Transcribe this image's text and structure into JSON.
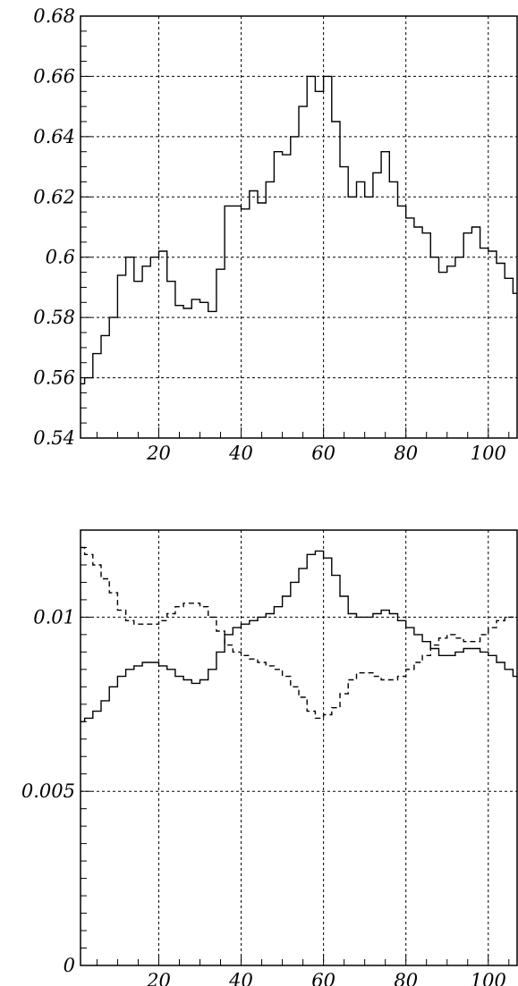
{
  "chart_data": [
    {
      "type": "line",
      "title": "",
      "xlabel": "",
      "ylabel": "",
      "xlim": [
        1,
        107
      ],
      "ylim": [
        0.54,
        0.68
      ],
      "grid": true,
      "x_ticks": [
        20,
        40,
        60,
        80,
        100
      ],
      "y_ticks": [
        0.54,
        0.56,
        0.58,
        0.6,
        0.62,
        0.64,
        0.66,
        0.68
      ],
      "x_tick_labels": [
        "20",
        "40",
        "60",
        "80",
        "100"
      ],
      "y_tick_labels": [
        "0.54",
        "0.56",
        "0.58",
        "0.6",
        "0.62",
        "0.64",
        "0.66",
        "0.68"
      ],
      "series": [
        {
          "style": "solid",
          "step": true,
          "x": [
            1,
            3,
            5,
            7,
            9,
            11,
            13,
            15,
            17,
            19,
            21,
            23,
            25,
            27,
            29,
            31,
            33,
            35,
            37,
            39,
            41,
            43,
            45,
            47,
            49,
            51,
            53,
            55,
            57,
            59,
            61,
            63,
            65,
            67,
            69,
            71,
            73,
            75,
            77,
            79,
            81,
            83,
            85,
            87,
            89,
            91,
            93,
            95,
            97,
            99,
            101,
            103,
            105,
            107
          ],
          "y": [
            0.558,
            0.56,
            0.568,
            0.574,
            0.58,
            0.594,
            0.6,
            0.592,
            0.597,
            0.6,
            0.602,
            0.592,
            0.584,
            0.583,
            0.586,
            0.585,
            0.582,
            0.596,
            0.617,
            0.617,
            0.616,
            0.622,
            0.618,
            0.625,
            0.635,
            0.634,
            0.64,
            0.65,
            0.66,
            0.655,
            0.66,
            0.645,
            0.63,
            0.62,
            0.625,
            0.62,
            0.628,
            0.635,
            0.625,
            0.617,
            0.613,
            0.61,
            0.608,
            0.6,
            0.595,
            0.597,
            0.6,
            0.608,
            0.61,
            0.603,
            0.602,
            0.598,
            0.593,
            0.588
          ]
        }
      ]
    },
    {
      "type": "line",
      "title": "",
      "xlabel": "",
      "ylabel": "",
      "xlim": [
        1,
        107
      ],
      "ylim": [
        0,
        0.0125
      ],
      "grid": true,
      "x_ticks": [
        20,
        40,
        60,
        80,
        100
      ],
      "y_ticks": [
        0,
        0.005,
        0.01
      ],
      "x_tick_labels": [
        "20",
        "40",
        "60",
        "80",
        "100"
      ],
      "y_tick_labels": [
        "0",
        "0.005",
        "0.01"
      ],
      "series": [
        {
          "style": "solid",
          "step": true,
          "x": [
            1,
            3,
            5,
            7,
            9,
            11,
            13,
            15,
            17,
            19,
            21,
            23,
            25,
            27,
            29,
            31,
            33,
            35,
            37,
            39,
            41,
            43,
            45,
            47,
            49,
            51,
            53,
            55,
            57,
            59,
            61,
            63,
            65,
            67,
            69,
            71,
            73,
            75,
            77,
            79,
            81,
            83,
            85,
            87,
            89,
            91,
            93,
            95,
            97,
            99,
            101,
            103,
            105,
            107
          ],
          "y": [
            0.007,
            0.0071,
            0.0073,
            0.0076,
            0.008,
            0.0083,
            0.0085,
            0.0086,
            0.0087,
            0.0087,
            0.0086,
            0.0085,
            0.0083,
            0.0082,
            0.0081,
            0.0082,
            0.0085,
            0.009,
            0.0095,
            0.0097,
            0.0098,
            0.0099,
            0.01,
            0.0101,
            0.0103,
            0.0106,
            0.011,
            0.0114,
            0.0118,
            0.0119,
            0.0117,
            0.0112,
            0.0106,
            0.0101,
            0.01,
            0.01,
            0.0101,
            0.0102,
            0.0101,
            0.0099,
            0.0097,
            0.0095,
            0.0093,
            0.0091,
            0.0089,
            0.0089,
            0.009,
            0.0091,
            0.0091,
            0.009,
            0.0089,
            0.0087,
            0.0085,
            0.0083
          ]
        },
        {
          "style": "dashed",
          "step": true,
          "x": [
            1,
            3,
            5,
            7,
            9,
            11,
            13,
            15,
            17,
            19,
            21,
            23,
            25,
            27,
            29,
            31,
            33,
            35,
            37,
            39,
            41,
            43,
            45,
            47,
            49,
            51,
            53,
            55,
            57,
            59,
            61,
            63,
            65,
            67,
            69,
            71,
            73,
            75,
            77,
            79,
            81,
            83,
            85,
            87,
            89,
            91,
            93,
            95,
            97,
            99,
            101,
            103,
            105,
            107
          ],
          "y": [
            0.012,
            0.0118,
            0.0115,
            0.0111,
            0.0107,
            0.0102,
            0.0099,
            0.0098,
            0.0098,
            0.0098,
            0.0099,
            0.0101,
            0.0103,
            0.0104,
            0.0104,
            0.0103,
            0.01,
            0.0096,
            0.0092,
            0.009,
            0.0089,
            0.0088,
            0.0087,
            0.0086,
            0.0085,
            0.0083,
            0.008,
            0.0077,
            0.0073,
            0.0071,
            0.0072,
            0.0074,
            0.0078,
            0.0082,
            0.0084,
            0.0084,
            0.0083,
            0.0082,
            0.0082,
            0.0083,
            0.0085,
            0.0087,
            0.0089,
            0.0092,
            0.0094,
            0.0095,
            0.0094,
            0.0093,
            0.0093,
            0.0095,
            0.0097,
            0.0099,
            0.01,
            0.01
          ]
        }
      ]
    }
  ]
}
